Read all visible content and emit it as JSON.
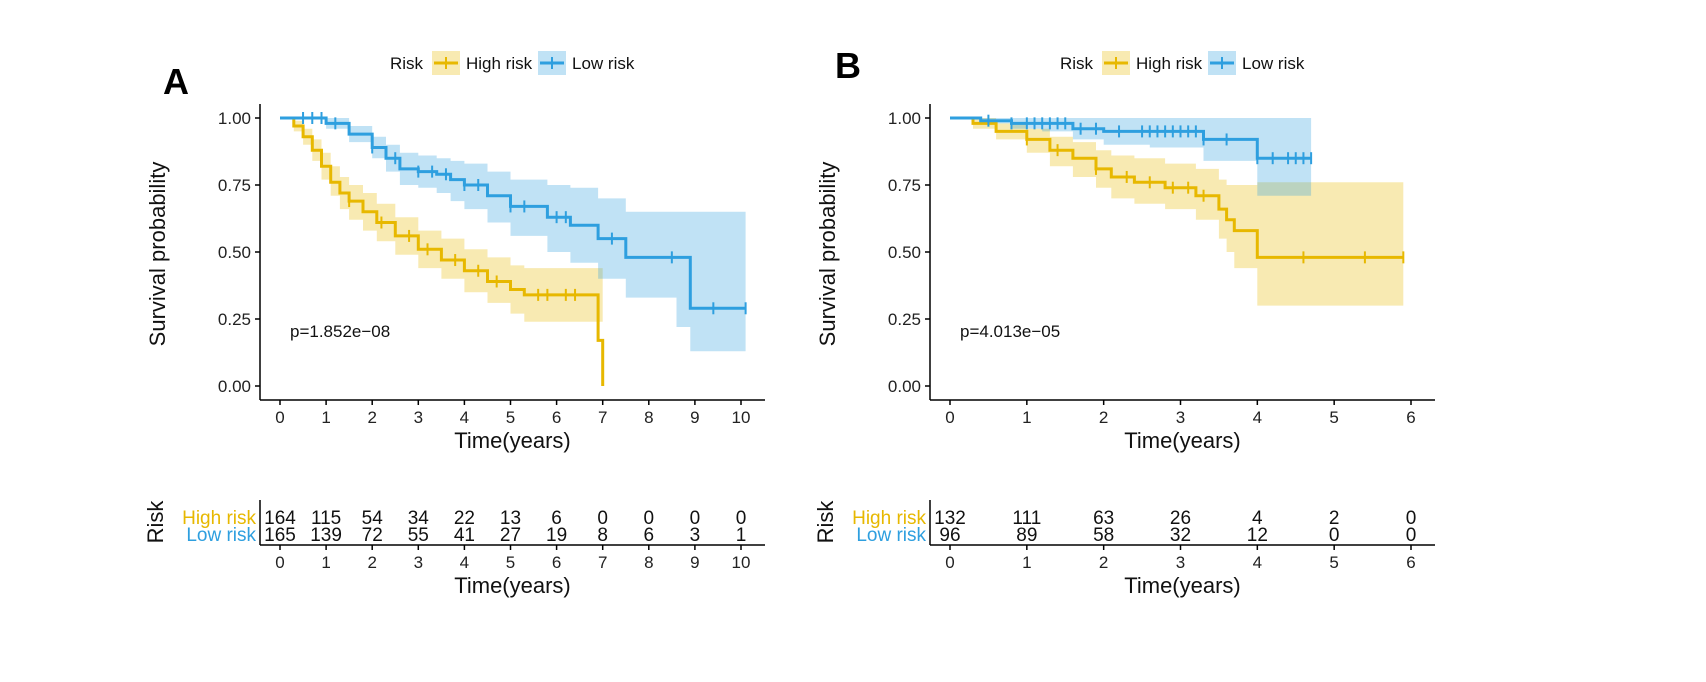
{
  "colors": {
    "high": "#E7B800",
    "low": "#2E9FDF",
    "axis": "#000000"
  },
  "legend": {
    "title": "Risk",
    "high_label": "High risk",
    "low_label": "Low risk"
  },
  "risk_table": {
    "row_title": "Risk",
    "high_label": "High risk",
    "low_label": "Low risk"
  },
  "chart_data": [
    {
      "type": "line",
      "panel_label": "A",
      "pvalue_text": "p=1.852e−08",
      "xlabel": "Time(years)",
      "ylabel": "Survival probability",
      "xlim": [
        0,
        10
      ],
      "ylim": [
        0,
        1
      ],
      "xticks": [
        "0",
        "1",
        "2",
        "3",
        "4",
        "5",
        "6",
        "7",
        "8",
        "9",
        "10"
      ],
      "yticks": [
        "0.00",
        "0.25",
        "0.50",
        "0.75",
        "1.00"
      ],
      "series": [
        {
          "name": "High risk",
          "x": [
            0,
            0.3,
            0.5,
            0.7,
            0.9,
            1.1,
            1.3,
            1.5,
            1.8,
            2.1,
            2.5,
            3.0,
            3.5,
            4.0,
            4.5,
            5.0,
            5.3,
            6.0,
            6.8,
            6.9,
            7.0
          ],
          "y": [
            1.0,
            0.97,
            0.93,
            0.88,
            0.82,
            0.76,
            0.72,
            0.69,
            0.65,
            0.61,
            0.56,
            0.51,
            0.47,
            0.43,
            0.39,
            0.36,
            0.34,
            0.34,
            0.34,
            0.17,
            0.0
          ],
          "lower": [
            1.0,
            0.95,
            0.9,
            0.84,
            0.77,
            0.71,
            0.66,
            0.62,
            0.58,
            0.54,
            0.49,
            0.44,
            0.4,
            0.35,
            0.31,
            0.27,
            0.24,
            0.24,
            0.24,
            0.24,
            0.24
          ],
          "upper": [
            1.0,
            0.99,
            0.96,
            0.92,
            0.87,
            0.82,
            0.78,
            0.75,
            0.72,
            0.68,
            0.63,
            0.58,
            0.55,
            0.51,
            0.48,
            0.45,
            0.44,
            0.44,
            0.44,
            0.44,
            0.44
          ],
          "censor_x": [
            1.5,
            2.2,
            2.8,
            3.2,
            3.8,
            4.3,
            4.7,
            5.6,
            5.8,
            6.2,
            6.4
          ],
          "at_risk": [
            164,
            115,
            54,
            34,
            22,
            13,
            6,
            0,
            0,
            0,
            0
          ]
        },
        {
          "name": "Low risk",
          "x": [
            0,
            0.5,
            1.0,
            1.5,
            2.0,
            2.3,
            2.6,
            3.0,
            3.4,
            3.7,
            4.0,
            4.5,
            5.0,
            5.8,
            6.3,
            6.9,
            7.5,
            8.6,
            8.9,
            10.1
          ],
          "y": [
            1.0,
            1.0,
            0.98,
            0.94,
            0.89,
            0.85,
            0.81,
            0.8,
            0.79,
            0.77,
            0.75,
            0.71,
            0.67,
            0.63,
            0.6,
            0.55,
            0.48,
            0.48,
            0.29,
            0.29
          ],
          "lower": [
            1.0,
            1.0,
            0.96,
            0.91,
            0.85,
            0.8,
            0.75,
            0.74,
            0.72,
            0.69,
            0.66,
            0.61,
            0.56,
            0.5,
            0.46,
            0.4,
            0.33,
            0.22,
            0.13,
            0.13
          ],
          "upper": [
            1.0,
            1.0,
            1.0,
            0.97,
            0.93,
            0.9,
            0.87,
            0.86,
            0.85,
            0.84,
            0.83,
            0.8,
            0.77,
            0.75,
            0.74,
            0.7,
            0.65,
            0.65,
            0.65,
            0.65
          ],
          "censor_x": [
            0.5,
            0.7,
            0.9,
            1.2,
            2.0,
            2.5,
            3.0,
            3.3,
            3.6,
            4.0,
            4.3,
            5.0,
            5.3,
            6.0,
            6.2,
            7.2,
            8.5,
            9.4,
            10.1
          ],
          "at_risk": [
            165,
            139,
            72,
            55,
            41,
            27,
            19,
            8,
            6,
            3,
            1
          ]
        }
      ]
    },
    {
      "type": "line",
      "panel_label": "B",
      "pvalue_text": "p=4.013e−05",
      "xlabel": "Time(years)",
      "ylabel": "Survival probability",
      "xlim": [
        0,
        6
      ],
      "ylim": [
        0,
        1
      ],
      "xticks": [
        "0",
        "1",
        "2",
        "3",
        "4",
        "5",
        "6"
      ],
      "yticks": [
        "0.00",
        "0.25",
        "0.50",
        "0.75",
        "1.00"
      ],
      "series": [
        {
          "name": "High risk",
          "x": [
            0,
            0.3,
            0.6,
            1.0,
            1.3,
            1.6,
            1.9,
            2.1,
            2.4,
            2.8,
            3.2,
            3.5,
            3.6,
            3.7,
            3.9,
            4.0,
            5.9
          ],
          "y": [
            1.0,
            0.98,
            0.95,
            0.92,
            0.88,
            0.85,
            0.81,
            0.78,
            0.76,
            0.74,
            0.71,
            0.66,
            0.62,
            0.58,
            0.58,
            0.48,
            0.48
          ],
          "lower": [
            1.0,
            0.96,
            0.92,
            0.87,
            0.82,
            0.78,
            0.74,
            0.7,
            0.68,
            0.66,
            0.62,
            0.55,
            0.5,
            0.44,
            0.44,
            0.3,
            0.3
          ],
          "upper": [
            1.0,
            1.0,
            0.98,
            0.96,
            0.93,
            0.91,
            0.88,
            0.86,
            0.85,
            0.83,
            0.81,
            0.77,
            0.75,
            0.75,
            0.75,
            0.76,
            0.76
          ],
          "censor_x": [
            1.0,
            1.4,
            1.9,
            2.3,
            2.6,
            2.9,
            3.1,
            3.3,
            4.6,
            5.4,
            5.9
          ],
          "at_risk": [
            132,
            111,
            63,
            26,
            4,
            2,
            0
          ]
        },
        {
          "name": "Low risk",
          "x": [
            0,
            0.4,
            0.8,
            1.2,
            1.6,
            2.0,
            2.6,
            3.3,
            3.9,
            4.0,
            4.7
          ],
          "y": [
            1.0,
            0.99,
            0.98,
            0.98,
            0.96,
            0.95,
            0.95,
            0.92,
            0.92,
            0.85,
            0.85
          ],
          "lower": [
            1.0,
            0.98,
            0.96,
            0.95,
            0.92,
            0.9,
            0.89,
            0.84,
            0.84,
            0.71,
            0.71
          ],
          "upper": [
            1.0,
            1.0,
            1.0,
            1.0,
            1.0,
            1.0,
            1.0,
            1.0,
            1.0,
            1.0,
            1.0
          ],
          "censor_x": [
            0.5,
            0.8,
            1.0,
            1.1,
            1.2,
            1.3,
            1.4,
            1.5,
            1.7,
            1.9,
            2.2,
            2.5,
            2.6,
            2.7,
            2.8,
            2.9,
            3.0,
            3.1,
            3.2,
            3.3,
            3.6,
            4.0,
            4.2,
            4.4,
            4.5,
            4.6,
            4.7
          ],
          "at_risk": [
            96,
            89,
            58,
            32,
            12,
            0,
            0
          ]
        }
      ]
    }
  ]
}
